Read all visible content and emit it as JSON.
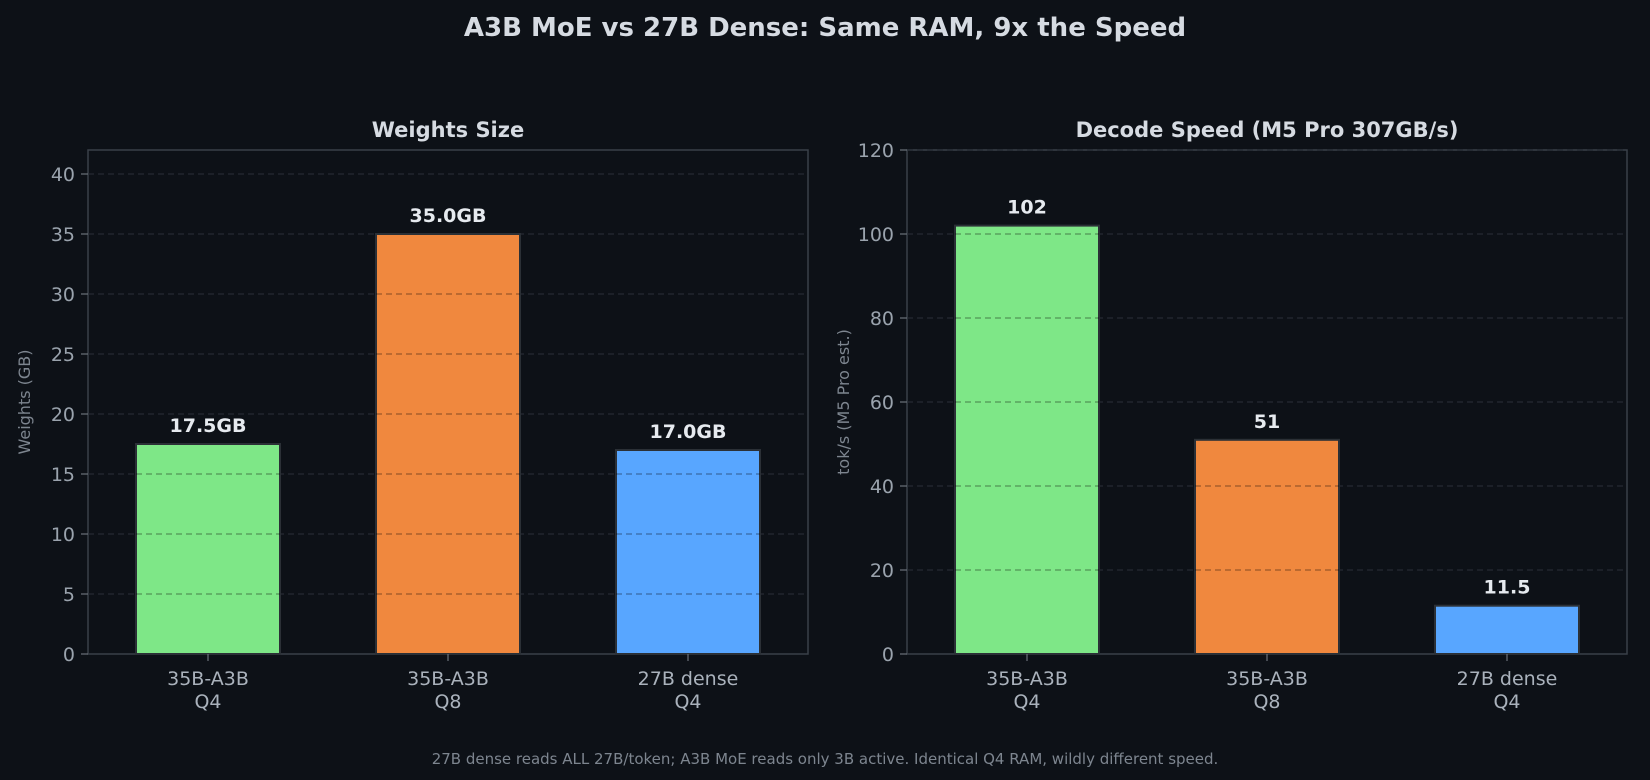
{
  "figure": {
    "title": "A3B MoE vs 27B Dense: Same RAM, 9x the Speed",
    "footnote": "27B dense reads ALL 27B/token; A3B MoE reads only 3B active. Identical Q4 RAM, wildly different speed."
  },
  "chart_data": [
    {
      "type": "bar",
      "title": "Weights Size",
      "ylabel": "Weights (GB)",
      "xlabel": "",
      "categories": [
        [
          "35B-A3B",
          "Q4"
        ],
        [
          "35B-A3B",
          "Q8"
        ],
        [
          "27B dense",
          "Q4"
        ]
      ],
      "values": [
        17.5,
        35.0,
        17.0
      ],
      "value_labels": [
        "17.5GB",
        "35.0GB",
        "17.0GB"
      ],
      "colors": [
        "#7ee787",
        "#f0883e",
        "#58a6ff"
      ],
      "ylim": [
        0,
        42
      ],
      "yticks": [
        0,
        5,
        10,
        15,
        20,
        25,
        30,
        35,
        40
      ],
      "grid": true
    },
    {
      "type": "bar",
      "title": "Decode Speed (M5 Pro 307GB/s)",
      "ylabel": "tok/s (M5 Pro est.)",
      "xlabel": "",
      "categories": [
        [
          "35B-A3B",
          "Q4"
        ],
        [
          "35B-A3B",
          "Q8"
        ],
        [
          "27B dense",
          "Q4"
        ]
      ],
      "values": [
        102,
        51,
        11.5
      ],
      "value_labels": [
        "102",
        "51",
        "11.5"
      ],
      "colors": [
        "#7ee787",
        "#f0883e",
        "#58a6ff"
      ],
      "ylim": [
        0,
        120
      ],
      "yticks": [
        0,
        20,
        40,
        60,
        80,
        100,
        120
      ],
      "grid": true
    }
  ]
}
